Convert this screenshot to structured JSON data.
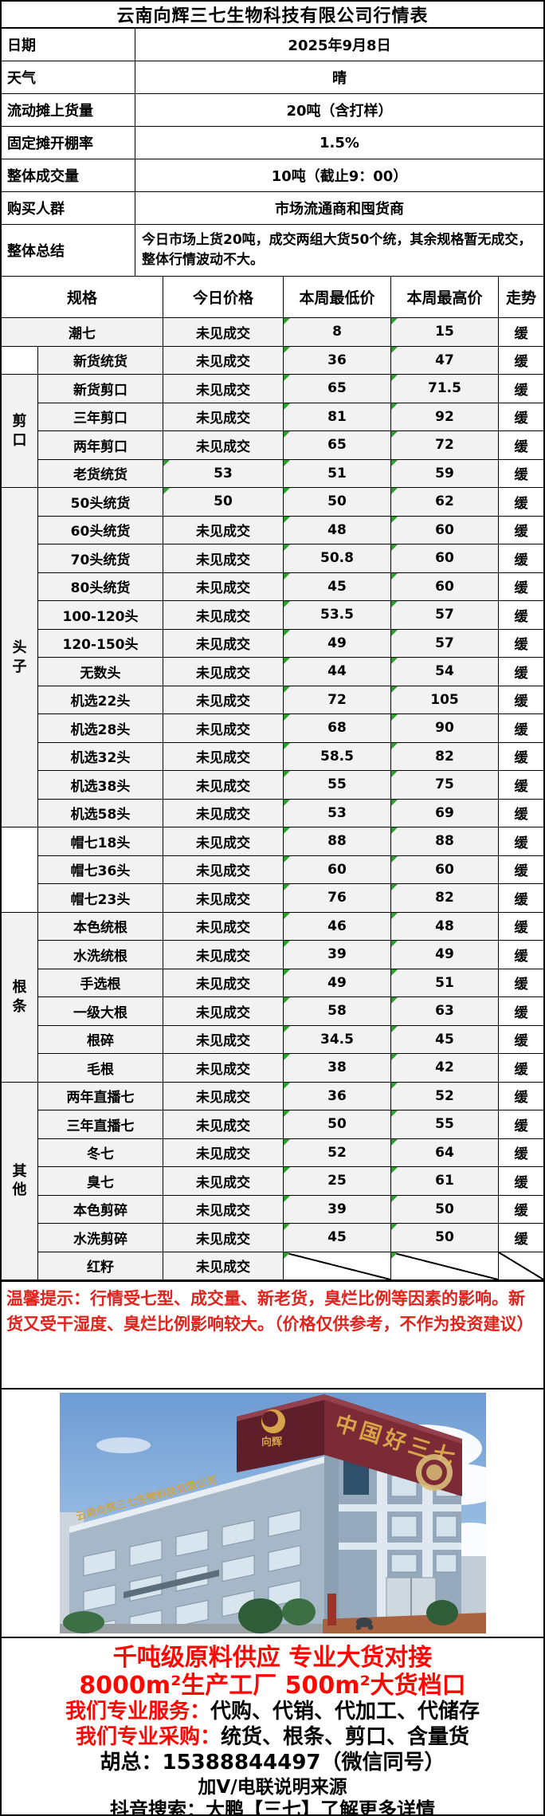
{
  "title": "云南向辉三七生物科技有限公司行情表",
  "info": [
    {
      "label": "日期",
      "value": "2025年9月8日"
    },
    {
      "label": "天气",
      "value": "晴"
    },
    {
      "label": "流动摊上货量",
      "value": "20吨（含打样）"
    },
    {
      "label": "固定摊开棚率",
      "value": "1.5%"
    },
    {
      "label": "整体成交量",
      "value": "10吨（截止9：00）"
    },
    {
      "label": "购买人群",
      "value": "市场流通商和囤货商"
    }
  ],
  "summary": {
    "label": "整体总结",
    "value": "今日市场上货20吨，成交两组大货50个统，其余规格暂无成交，整体行情波动不大。"
  },
  "market_table": {
    "headers": {
      "spec": "规格",
      "today": "今日价格",
      "low": "本周最低价",
      "high": "本周最高价",
      "trend": "走势"
    },
    "first": {
      "spec": "潮七",
      "today": "未见成交",
      "low": "8",
      "high": "15",
      "trend": "缓"
    },
    "groups": [
      {
        "label": "",
        "rows": 1
      },
      {
        "label": "剪口",
        "rows": 4
      },
      {
        "label": "头子",
        "rows": 12
      },
      {
        "label": "",
        "rows": 3
      },
      {
        "label": "根条",
        "rows": 6
      },
      {
        "label": "其他",
        "rows": 7
      }
    ],
    "rows": [
      {
        "spec": "新货统货",
        "today": "未见成交",
        "low": "36",
        "high": "47",
        "trend": "缓"
      },
      {
        "spec": "新货剪口",
        "today": "未见成交",
        "low": "65",
        "high": "71.5",
        "trend": "缓"
      },
      {
        "spec": "三年剪口",
        "today": "未见成交",
        "low": "81",
        "high": "92",
        "trend": "缓"
      },
      {
        "spec": "两年剪口",
        "today": "未见成交",
        "low": "65",
        "high": "72",
        "trend": "缓"
      },
      {
        "spec": "老货统货",
        "today": "53",
        "low": "51",
        "high": "59",
        "trend": "缓"
      },
      {
        "spec": "50头统货",
        "today": "50",
        "low": "50",
        "high": "62",
        "trend": "缓"
      },
      {
        "spec": "60头统货",
        "today": "未见成交",
        "low": "48",
        "high": "60",
        "trend": "缓"
      },
      {
        "spec": "70头统货",
        "today": "未见成交",
        "low": "50.8",
        "high": "60",
        "trend": "缓"
      },
      {
        "spec": "80头统货",
        "today": "未见成交",
        "low": "45",
        "high": "60",
        "trend": "缓"
      },
      {
        "spec": "100-120头",
        "today": "未见成交",
        "low": "53.5",
        "high": "57",
        "trend": "缓"
      },
      {
        "spec": "120-150头",
        "today": "未见成交",
        "low": "49",
        "high": "57",
        "trend": "缓"
      },
      {
        "spec": "无数头",
        "today": "未见成交",
        "low": "44",
        "high": "54",
        "trend": "缓"
      },
      {
        "spec": "机选22头",
        "today": "未见成交",
        "low": "72",
        "high": "105",
        "trend": "缓"
      },
      {
        "spec": "机选28头",
        "today": "未见成交",
        "low": "68",
        "high": "90",
        "trend": "缓"
      },
      {
        "spec": "机选32头",
        "today": "未见成交",
        "low": "58.5",
        "high": "82",
        "trend": "缓"
      },
      {
        "spec": "机选38头",
        "today": "未见成交",
        "low": "55",
        "high": "75",
        "trend": "缓"
      },
      {
        "spec": "机选58头",
        "today": "未见成交",
        "low": "53",
        "high": "69",
        "trend": "缓"
      },
      {
        "spec": "帽七18头",
        "today": "未见成交",
        "low": "88",
        "high": "88",
        "trend": "缓"
      },
      {
        "spec": "帽七36头",
        "today": "未见成交",
        "low": "60",
        "high": "60",
        "trend": "缓"
      },
      {
        "spec": "帽七23头",
        "today": "未见成交",
        "low": "76",
        "high": "82",
        "trend": "缓"
      },
      {
        "spec": "本色统根",
        "today": "未见成交",
        "low": "46",
        "high": "48",
        "trend": "缓"
      },
      {
        "spec": "水洗统根",
        "today": "未见成交",
        "low": "39",
        "high": "49",
        "trend": "缓"
      },
      {
        "spec": "手选根",
        "today": "未见成交",
        "low": "49",
        "high": "51",
        "trend": "缓"
      },
      {
        "spec": "一级大根",
        "today": "未见成交",
        "low": "58",
        "high": "63",
        "trend": "缓"
      },
      {
        "spec": "根碎",
        "today": "未见成交",
        "low": "34.5",
        "high": "45",
        "trend": "缓"
      },
      {
        "spec": "毛根",
        "today": "未见成交",
        "low": "38",
        "high": "42",
        "trend": "缓"
      },
      {
        "spec": "两年直播七",
        "today": "未见成交",
        "low": "36",
        "high": "52",
        "trend": "缓"
      },
      {
        "spec": "三年直播七",
        "today": "未见成交",
        "low": "50",
        "high": "55",
        "trend": "缓"
      },
      {
        "spec": "冬七",
        "today": "未见成交",
        "low": "52",
        "high": "64",
        "trend": "缓"
      },
      {
        "spec": "臭七",
        "today": "未见成交",
        "low": "25",
        "high": "61",
        "trend": "缓"
      },
      {
        "spec": "本色剪碎",
        "today": "未见成交",
        "low": "39",
        "high": "50",
        "trend": "缓"
      },
      {
        "spec": "水洗剪碎",
        "today": "未见成交",
        "low": "45",
        "high": "50",
        "trend": "缓"
      },
      {
        "spec": "红籽",
        "today": "未见成交",
        "low": "",
        "high": "",
        "trend": "",
        "slash": true
      }
    ]
  },
  "notice": "温馨提示：行情受七型、成交量、新老货，臭烂比例等因素的影响。新货又受干湿度、臭烂比例影响较大。（价格仅供参考，不作为投资建议）",
  "photo": {
    "sign_main": "中国好三七",
    "sign_logo": "向辉",
    "roof_text": "云南向辉三七生物科技有限公司"
  },
  "footer": {
    "line1": "千吨级原料供应 专业大货对接",
    "line2": "8000m²生产工厂 500m²大货档口",
    "services_label": "我们专业服务：",
    "services_value": "代购、代销、代加工、代储存",
    "purchase_label": "我们专业采购：",
    "purchase_value": "统货、根条、剪口、含量货",
    "contact": "胡总：15388844497（微信同号）",
    "note": "加V/电联说明来源",
    "douyin": "抖音搜索：大鹏【三七】了解更多详情"
  }
}
